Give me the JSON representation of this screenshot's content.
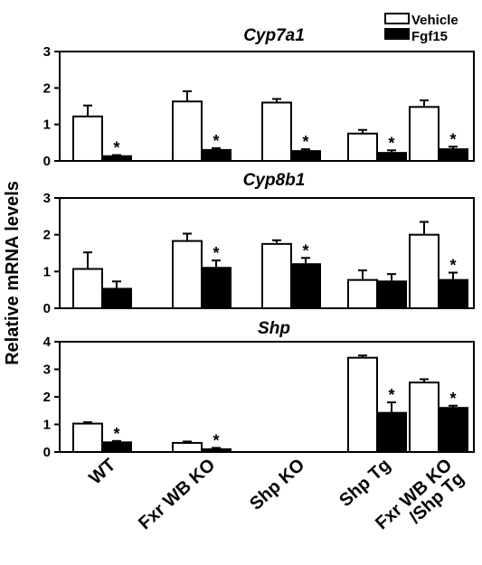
{
  "y_axis_label": "Relative mRNA levels",
  "categories": [
    "WT",
    "Fxr WB KO",
    "Shp KO",
    "Shp Tg",
    "Fxr WB KO\n/Shp Tg"
  ],
  "legend": [
    {
      "name": "Vehicle",
      "fill": "#ffffff"
    },
    {
      "name": "Fgf15",
      "fill": "#000000"
    }
  ],
  "significance_marker": "*",
  "chart_data": [
    {
      "type": "bar",
      "title": "Cyp7a1",
      "ylim": [
        0,
        3
      ],
      "yticks": [
        0,
        1,
        2,
        3
      ],
      "categories": [
        "WT",
        "Fxr WB KO",
        "Shp KO",
        "Shp Tg",
        "Fxr WB KO /Shp Tg"
      ],
      "series": [
        {
          "name": "Vehicle",
          "values": [
            1.22,
            1.63,
            1.6,
            0.75,
            1.48
          ],
          "errors": [
            0.3,
            0.28,
            0.1,
            0.1,
            0.18
          ],
          "significant": [
            false,
            false,
            false,
            false,
            false
          ]
        },
        {
          "name": "Fgf15",
          "values": [
            0.13,
            0.3,
            0.27,
            0.22,
            0.32
          ],
          "errors": [
            0.03,
            0.05,
            0.05,
            0.07,
            0.07
          ],
          "significant": [
            true,
            true,
            true,
            true,
            true
          ]
        }
      ]
    },
    {
      "type": "bar",
      "title": "Cyp8b1",
      "ylim": [
        0,
        3
      ],
      "yticks": [
        0,
        1,
        2,
        3
      ],
      "categories": [
        "WT",
        "Fxr WB KO",
        "Shp KO",
        "Shp Tg",
        "Fxr WB KO /Shp Tg"
      ],
      "series": [
        {
          "name": "Vehicle",
          "values": [
            1.07,
            1.83,
            1.75,
            0.77,
            2.0
          ],
          "errors": [
            0.45,
            0.2,
            0.1,
            0.26,
            0.35
          ],
          "significant": [
            false,
            false,
            false,
            false,
            false
          ]
        },
        {
          "name": "Fgf15",
          "values": [
            0.53,
            1.1,
            1.2,
            0.73,
            0.77
          ],
          "errors": [
            0.2,
            0.2,
            0.17,
            0.2,
            0.2
          ],
          "significant": [
            false,
            true,
            true,
            false,
            true
          ]
        }
      ]
    },
    {
      "type": "bar",
      "title": "Shp",
      "ylim": [
        0,
        4
      ],
      "yticks": [
        0,
        1,
        2,
        3,
        4
      ],
      "categories": [
        "WT",
        "Fxr WB KO",
        "Shp KO",
        "Shp Tg",
        "Fxr WB KO /Shp Tg"
      ],
      "series": [
        {
          "name": "Vehicle",
          "values": [
            1.03,
            0.33,
            null,
            3.42,
            2.52
          ],
          "errors": [
            0.05,
            0.05,
            null,
            0.08,
            0.12
          ],
          "significant": [
            false,
            false,
            false,
            false,
            false
          ]
        },
        {
          "name": "Fgf15",
          "values": [
            0.35,
            0.1,
            null,
            1.42,
            1.6
          ],
          "errors": [
            0.05,
            0.05,
            null,
            0.38,
            0.08
          ],
          "significant": [
            true,
            true,
            false,
            true,
            true
          ]
        }
      ]
    }
  ]
}
